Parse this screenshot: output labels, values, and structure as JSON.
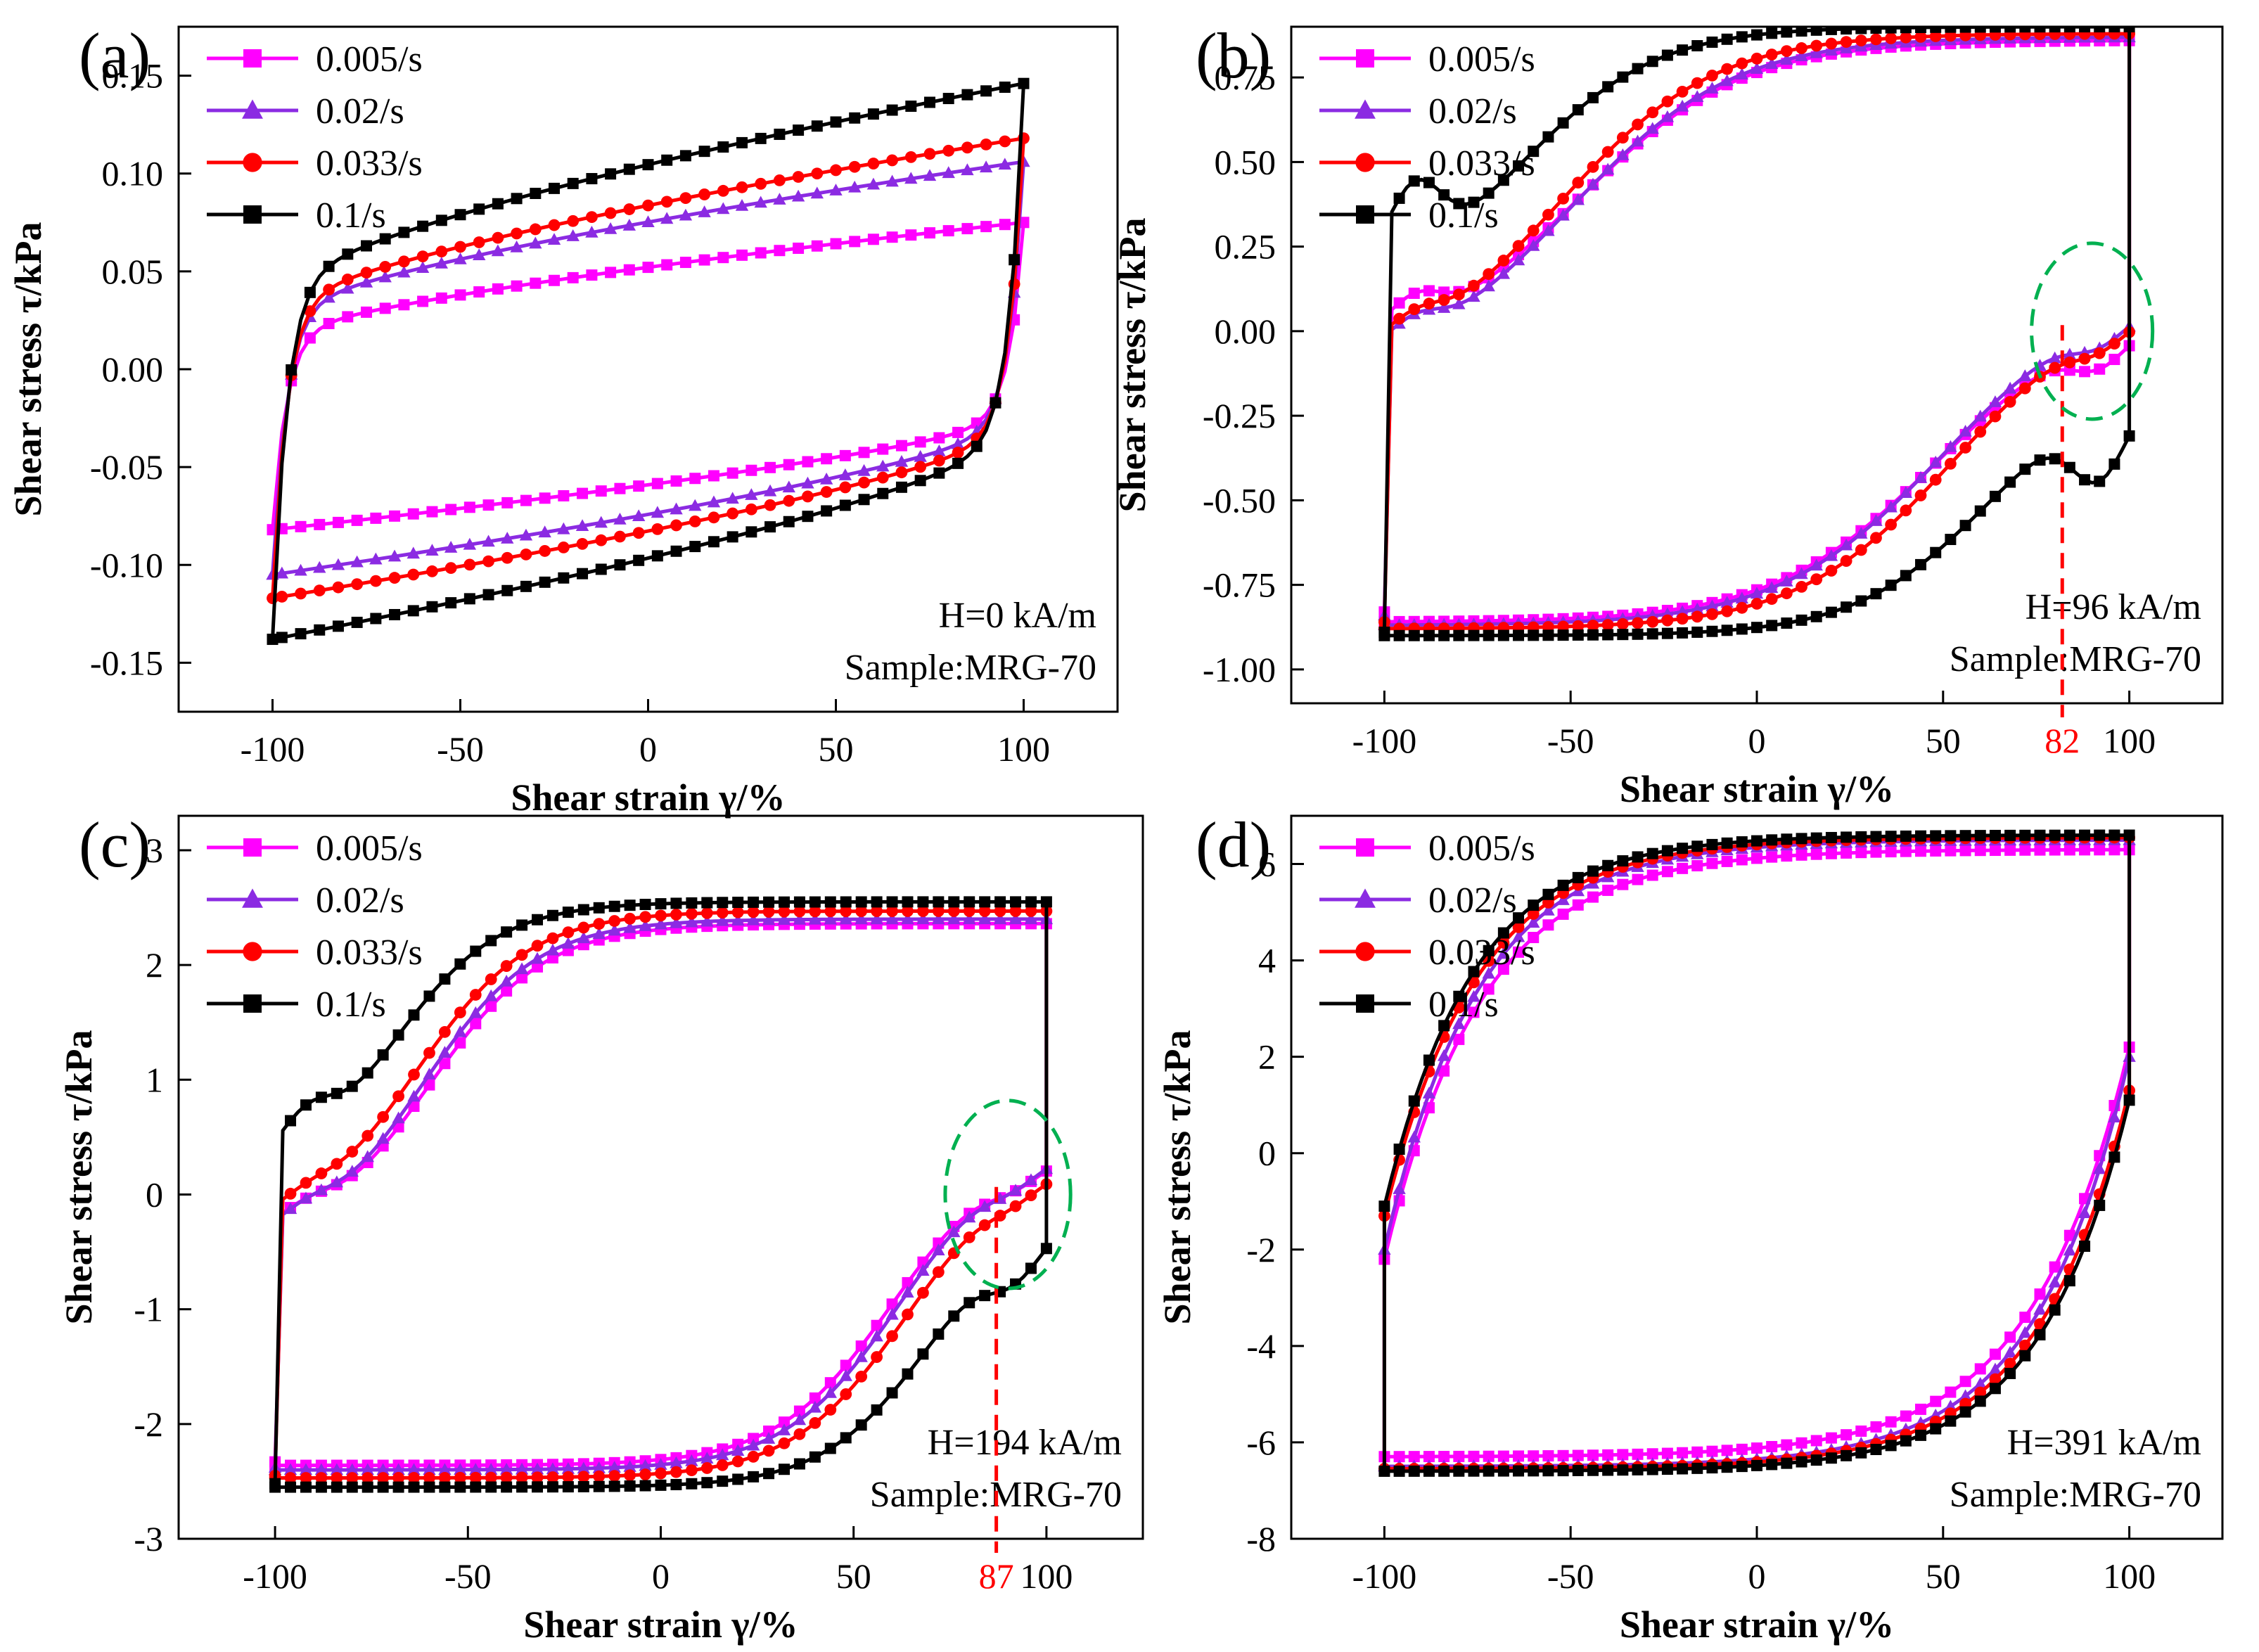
{
  "figure": {
    "series_styles": [
      {
        "name": "0.005/s",
        "color": "#ff00ff",
        "marker": "square"
      },
      {
        "name": "0.02/s",
        "color": "#8b2be2",
        "marker": "triangle"
      },
      {
        "name": "0.033/s",
        "color": "#ff0000",
        "marker": "circle"
      },
      {
        "name": "0.1/s",
        "color": "#000000",
        "marker": "square"
      }
    ],
    "annotation_colors": {
      "dash_line": "#ff0000",
      "ellipse": "#00b050"
    }
  },
  "chart_data": [
    {
      "type": "line",
      "panel_label": "(a)",
      "xlabel": "Shear strain γ/%",
      "ylabel": "Shear stress τ/kPa",
      "xlim": [
        -125,
        125
      ],
      "ylim": [
        -0.175,
        0.175
      ],
      "xticks": [
        -100,
        -50,
        0,
        50,
        100
      ],
      "yticks": [
        -0.15,
        -0.1,
        -0.05,
        0.0,
        0.05,
        0.1,
        0.15
      ],
      "ytick_labels": [
        "-0.15",
        "-0.10",
        "-0.05",
        "0.00",
        "0.05",
        "0.10",
        "0.15"
      ],
      "legend": [
        "0.005/s",
        "0.02/s",
        "0.033/s",
        "0.1/s"
      ],
      "legend_position": "top-left",
      "annotations": [
        "H=0 kA/m",
        "Sample:MRG-70"
      ],
      "curve_model": "viscous",
      "series": [
        {
          "name": "0.005/s",
          "upper_end": 0.075,
          "lower_start": -0.082,
          "at_100": 0.075,
          "at_neg100": -0.082
        },
        {
          "name": "0.02/s",
          "upper_end": 0.106,
          "lower_start": -0.105,
          "at_100": 0.106,
          "at_neg100": -0.105
        },
        {
          "name": "0.033/s",
          "upper_end": 0.118,
          "lower_start": -0.117,
          "at_100": 0.118,
          "at_neg100": -0.117
        },
        {
          "name": "0.1/s",
          "upper_end": 0.146,
          "lower_start": -0.138,
          "at_100": 0.146,
          "at_neg100": -0.138
        }
      ]
    },
    {
      "type": "line",
      "panel_label": "(b)",
      "xlabel": "Shear strain γ/%",
      "ylabel": "Shear stress τ/kPa",
      "xlim": [
        -125,
        125
      ],
      "ylim": [
        -1.1,
        0.9
      ],
      "xticks": [
        -100,
        -50,
        0,
        50,
        100
      ],
      "yticks": [
        -1.0,
        -0.75,
        -0.5,
        -0.25,
        0.0,
        0.25,
        0.5,
        0.75
      ],
      "ytick_labels": [
        "-1.00",
        "-0.75",
        "-0.50",
        "-0.25",
        "0.00",
        "0.25",
        "0.50",
        "0.75"
      ],
      "legend": [
        "0.005/s",
        "0.02/s",
        "0.033/s",
        "0.1/s"
      ],
      "legend_position": "top-left",
      "annotations": [
        "H=96 kA/m",
        "Sample:MRG-70"
      ],
      "marker_line": {
        "x": 82,
        "label": "82"
      },
      "curve_model": "plastic",
      "series": [
        {
          "name": "0.005/s",
          "plateau": 0.83,
          "sat": 0.86,
          "jump": -0.08,
          "knee": 0.08,
          "mid": -48,
          "width": 22
        },
        {
          "name": "0.02/s",
          "plateau": 0.84,
          "sat": 0.87,
          "jump": -0.14,
          "knee": 0.06,
          "mid": -50,
          "width": 22
        },
        {
          "name": "0.033/s",
          "plateau": 0.86,
          "sat": 0.88,
          "jump": -0.12,
          "knee": 0.05,
          "mid": -53,
          "width": 21
        },
        {
          "name": "0.1/s",
          "plateau": 0.89,
          "sat": 0.9,
          "jump": 0.12,
          "knee": 0.2,
          "mid": -62,
          "width": 18
        }
      ]
    },
    {
      "type": "line",
      "panel_label": "(c)",
      "xlabel": "Shear strain γ/%",
      "ylabel": "Shear stress τ/kPa",
      "xlim": [
        -125,
        125
      ],
      "ylim": [
        -3,
        3.3
      ],
      "xticks": [
        -100,
        -50,
        0,
        50,
        100
      ],
      "yticks": [
        -3,
        -2,
        -1,
        0,
        1,
        2,
        3
      ],
      "ytick_labels": [
        "-3",
        "-2",
        "-1",
        "0",
        "1",
        "2",
        "3"
      ],
      "legend": [
        "0.005/s",
        "0.02/s",
        "0.033/s",
        "0.1/s"
      ],
      "legend_position": "top-left",
      "annotations": [
        "H=194 kA/m",
        "Sample:MRG-70"
      ],
      "marker_line": {
        "x": 87,
        "label": "87"
      },
      "curve_model": "plastic",
      "series": [
        {
          "name": "0.005/s",
          "plateau": 2.33,
          "sat": 2.36,
          "jump": -0.45,
          "knee": 0.12,
          "mid": -60,
          "width": 15
        },
        {
          "name": "0.02/s",
          "plateau": 2.38,
          "sat": 2.4,
          "jump": -0.5,
          "knee": 0.12,
          "mid": -62,
          "width": 15
        },
        {
          "name": "0.033/s",
          "plateau": 2.45,
          "sat": 2.47,
          "jump": -0.38,
          "knee": 0.1,
          "mid": -64,
          "width": 15
        },
        {
          "name": "0.1/s",
          "plateau": 2.52,
          "sat": 2.55,
          "jump": 0.05,
          "knee": 0.3,
          "mid": -70,
          "width": 14
        }
      ]
    },
    {
      "type": "line",
      "panel_label": "(d)",
      "xlabel": "Shear strain γ/%",
      "ylabel": "Shear stress τ/kPa",
      "xlim": [
        -125,
        125
      ],
      "ylim": [
        -8,
        7
      ],
      "xticks": [
        -100,
        -50,
        0,
        50,
        100
      ],
      "yticks": [
        -8,
        -6,
        -4,
        -2,
        0,
        2,
        4,
        6
      ],
      "ytick_labels": [
        "-8",
        "-6",
        "-4",
        "-2",
        "0",
        "2",
        "4",
        "6"
      ],
      "legend": [
        "0.005/s",
        "0.02/s",
        "0.033/s",
        "0.1/s"
      ],
      "legend_position": "top-left",
      "annotations": [
        "H=391 kA/m",
        "Sample:MRG-70"
      ],
      "curve_model": "saturated",
      "series": [
        {
          "name": "0.005/s",
          "plateau": 6.3,
          "start": -2.2,
          "tau": 26
        },
        {
          "name": "0.02/s",
          "plateau": 6.5,
          "start": -2.0,
          "tau": 25
        },
        {
          "name": "0.033/s",
          "plateau": 6.55,
          "start": -1.3,
          "tau": 25
        },
        {
          "name": "0.1/s",
          "plateau": 6.6,
          "start": -1.1,
          "tau": 24
        }
      ]
    }
  ]
}
